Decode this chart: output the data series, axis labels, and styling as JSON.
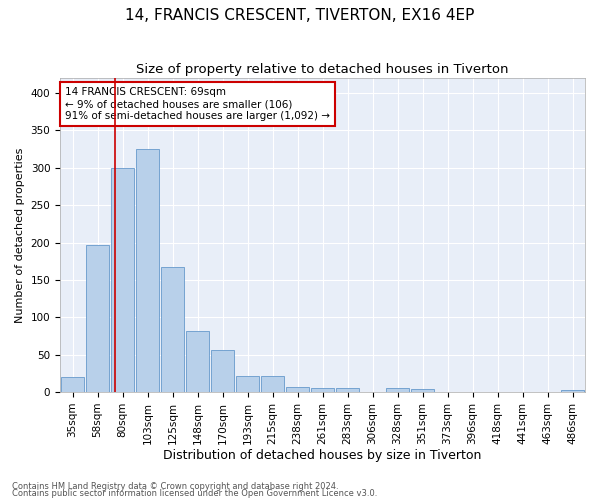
{
  "title": "14, FRANCIS CRESCENT, TIVERTON, EX16 4EP",
  "subtitle": "Size of property relative to detached houses in Tiverton",
  "xlabel": "Distribution of detached houses by size in Tiverton",
  "ylabel": "Number of detached properties",
  "footnote1": "Contains HM Land Registry data © Crown copyright and database right 2024.",
  "footnote2": "Contains public sector information licensed under the Open Government Licence v3.0.",
  "categories": [
    "35sqm",
    "58sqm",
    "80sqm",
    "103sqm",
    "125sqm",
    "148sqm",
    "170sqm",
    "193sqm",
    "215sqm",
    "238sqm",
    "261sqm",
    "283sqm",
    "306sqm",
    "328sqm",
    "351sqm",
    "373sqm",
    "396sqm",
    "418sqm",
    "441sqm",
    "463sqm",
    "486sqm"
  ],
  "values": [
    20,
    197,
    300,
    325,
    167,
    82,
    56,
    21,
    22,
    7,
    6,
    6,
    0,
    5,
    4,
    0,
    0,
    0,
    0,
    0,
    3
  ],
  "bar_color": "#b8d0ea",
  "bar_edge_color": "#6699cc",
  "bg_color": "#e8eef8",
  "grid_color": "#ffffff",
  "annotation_box_color": "#cc0000",
  "vline_color": "#cc0000",
  "vline_x": 1.68,
  "annotation_text": "14 FRANCIS CRESCENT: 69sqm\n← 9% of detached houses are smaller (106)\n91% of semi-detached houses are larger (1,092) →",
  "ylim": [
    0,
    420
  ],
  "yticks": [
    0,
    50,
    100,
    150,
    200,
    250,
    300,
    350,
    400
  ],
  "title_fontsize": 11,
  "subtitle_fontsize": 9.5,
  "xlabel_fontsize": 9,
  "ylabel_fontsize": 8,
  "tick_fontsize": 7.5,
  "annot_fontsize": 7.5
}
